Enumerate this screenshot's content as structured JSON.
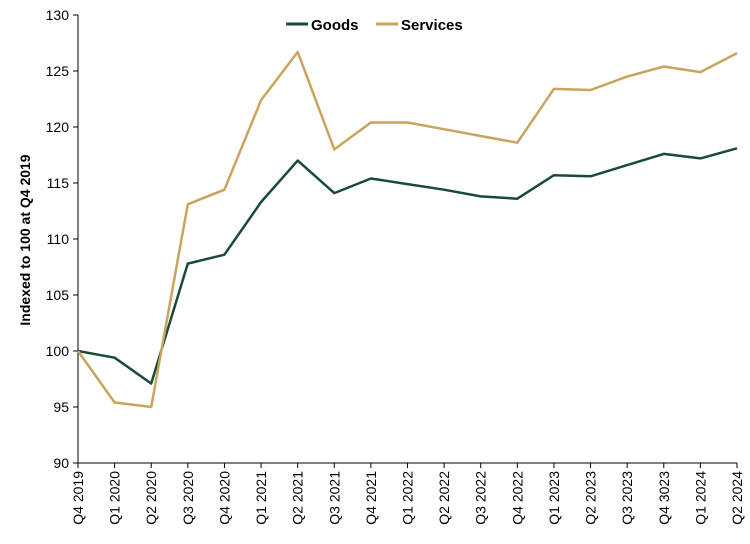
{
  "chart_data": {
    "type": "line",
    "title": "",
    "xlabel": "",
    "ylabel": "Indexed to 100 at Q4 2019",
    "ylim": [
      90,
      130
    ],
    "yticks": [
      90,
      95,
      100,
      105,
      110,
      115,
      120,
      125,
      130
    ],
    "grid": false,
    "legend_position": "top-center",
    "categories": [
      "Q4 2019",
      "Q1 2020",
      "Q2 2020",
      "Q3 2020",
      "Q4 2020",
      "Q1 2021",
      "Q2 2021",
      "Q3 2021",
      "Q4 2021",
      "Q1 2022",
      "Q2 2022",
      "Q3 2022",
      "Q4 2022",
      "Q1 2023",
      "Q2 2023",
      "Q3 2023",
      "Q4 3023",
      "Q1 2024",
      "Q2 2024"
    ],
    "series": [
      {
        "name": "Goods",
        "color": "#1a4a3a",
        "values": [
          100.0,
          99.4,
          97.1,
          107.8,
          108.6,
          113.3,
          117.0,
          114.1,
          115.4,
          114.9,
          114.4,
          113.8,
          113.6,
          115.7,
          115.6,
          116.6,
          117.6,
          117.2,
          118.1
        ]
      },
      {
        "name": "Services",
        "color": "#c9a45c",
        "values": [
          100.0,
          95.4,
          95.0,
          113.1,
          114.4,
          122.4,
          126.7,
          118.0,
          120.4,
          120.4,
          119.8,
          119.2,
          118.6,
          123.4,
          123.3,
          124.5,
          125.4,
          124.9,
          126.6
        ]
      }
    ]
  }
}
